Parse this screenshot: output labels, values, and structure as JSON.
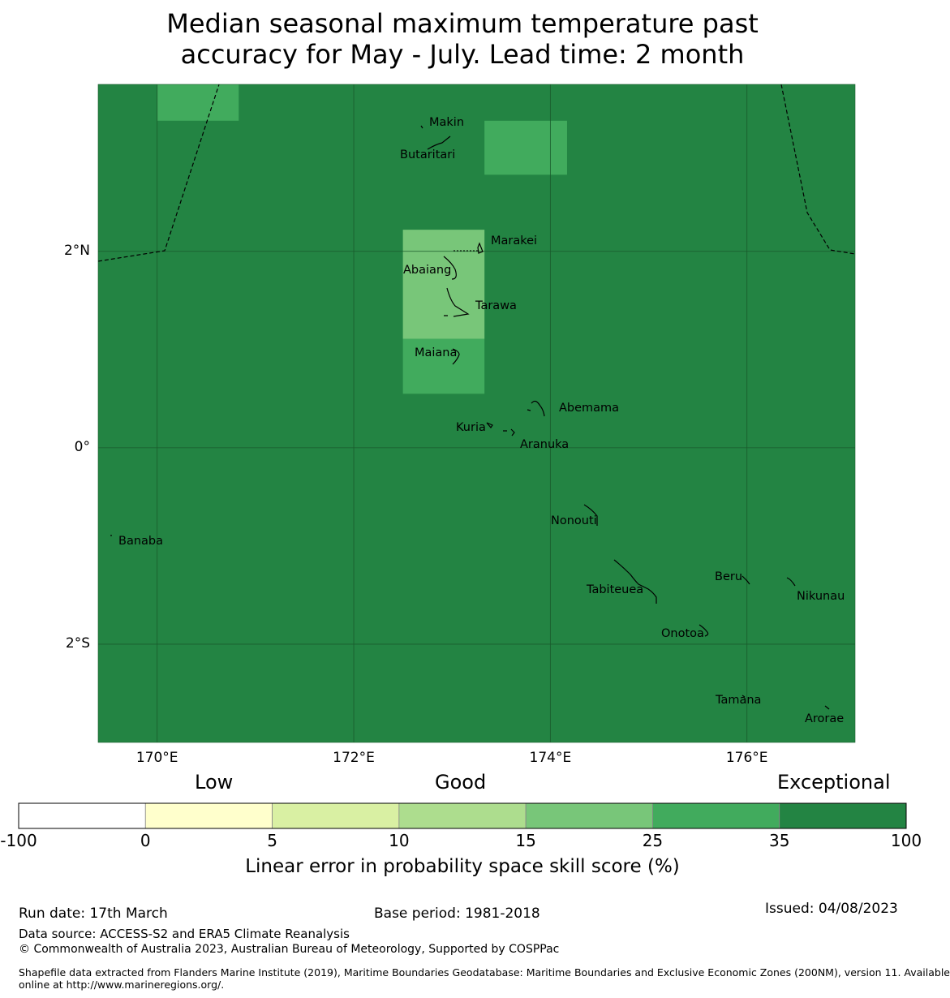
{
  "title": {
    "line1": "Median seasonal maximum temperature past",
    "line2": "accuracy for May - July. Lead time: 2 month"
  },
  "map": {
    "lat_range": [
      -3.0,
      3.7
    ],
    "lon_range": [
      169.4,
      177.1
    ],
    "lat_ticks": [
      {
        "value": 2,
        "label": "2°N"
      },
      {
        "value": 0,
        "label": "0°"
      },
      {
        "value": -2,
        "label": "2°S"
      }
    ],
    "lon_ticks": [
      {
        "value": 170,
        "label": "170°E"
      },
      {
        "value": 172,
        "label": "172°E"
      },
      {
        "value": 174,
        "label": "174°E"
      },
      {
        "value": 176,
        "label": "176°E"
      }
    ],
    "background_category": "35-100",
    "skill_cells": [
      {
        "lon": [
          170.0,
          170.83
        ],
        "lat": [
          3.33,
          3.7
        ],
        "category": "25-35"
      },
      {
        "lon": [
          173.33,
          174.17
        ],
        "lat": [
          2.78,
          3.33
        ],
        "category": "25-35"
      },
      {
        "lon": [
          172.5,
          173.33
        ],
        "lat": [
          1.11,
          2.22
        ],
        "category": "15-25"
      },
      {
        "lon": [
          172.5,
          173.33
        ],
        "lat": [
          0.55,
          1.11
        ],
        "category": "25-35"
      }
    ],
    "islands": [
      {
        "name": "Makin",
        "lon": 172.99,
        "lat": 3.36
      },
      {
        "name": "Butaritari",
        "lon": 172.78,
        "lat": 3.13
      },
      {
        "name": "Marakei",
        "lon": 173.27,
        "lat": 2.02
      },
      {
        "name": "Abaiang",
        "lon": 173.0,
        "lat": 1.88
      },
      {
        "name": "Tarawa",
        "lon": 173.08,
        "lat": 1.45
      },
      {
        "name": "Maiana",
        "lon": 173.04,
        "lat": 0.96
      },
      {
        "name": "Abemama",
        "lon": 173.85,
        "lat": 0.4
      },
      {
        "name": "Kuria",
        "lon": 173.42,
        "lat": 0.22
      },
      {
        "name": "Aranuka",
        "lon": 173.62,
        "lat": 0.16
      },
      {
        "name": "Nonouti",
        "lon": 174.42,
        "lat": -0.63
      },
      {
        "name": "Banaba",
        "lon": 169.53,
        "lat": -0.89
      },
      {
        "name": "Tabiteuea",
        "lon": 174.85,
        "lat": -1.3
      },
      {
        "name": "Beru",
        "lon": 175.98,
        "lat": -1.33
      },
      {
        "name": "Nikunau",
        "lon": 176.45,
        "lat": -1.38
      },
      {
        "name": "Onotoa",
        "lon": 175.56,
        "lat": -1.82
      },
      {
        "name": "Tamana",
        "lon": 175.98,
        "lat": -2.5
      },
      {
        "name": "Arorae",
        "lon": 176.83,
        "lat": -2.65
      }
    ]
  },
  "colorbar": {
    "categories_text": {
      "low": "Low",
      "good": "Good",
      "exceptional": "Exceptional"
    },
    "ticks": [
      "-100",
      "0",
      "5",
      "10",
      "15",
      "25",
      "35",
      "100"
    ],
    "bins": [
      {
        "range": "-100-0",
        "color": "#ffffff"
      },
      {
        "range": "0-5",
        "color": "#ffffcc"
      },
      {
        "range": "5-10",
        "color": "#d9f0a3"
      },
      {
        "range": "10-15",
        "color": "#addd8e"
      },
      {
        "range": "15-25",
        "color": "#78c679"
      },
      {
        "range": "25-35",
        "color": "#41ab5d"
      },
      {
        "range": "35-100",
        "color": "#238443"
      }
    ],
    "label": "Linear error in probability space skill score (%)"
  },
  "footer": {
    "run_date": "Run date: 17th March",
    "base_period": "Base period: 1981-2018",
    "issued": "Issued: 04/08/2023",
    "data_source": "Data source: ACCESS-S2 and ERA5 Climate Reanalysis",
    "copyright": "© Commonwealth of Australia 2023, Australian Bureau of Meteorology, Supported by COSPPac",
    "shapefile_line1": "Shapefile data extracted from Flanders Marine Institute (2019), Maritime Boundaries Geodatabase: Maritime Boundaries and Exclusive Economic Zones (200NM), version 11. Available",
    "shapefile_line2": "online at http://www.marineregions.org/."
  }
}
